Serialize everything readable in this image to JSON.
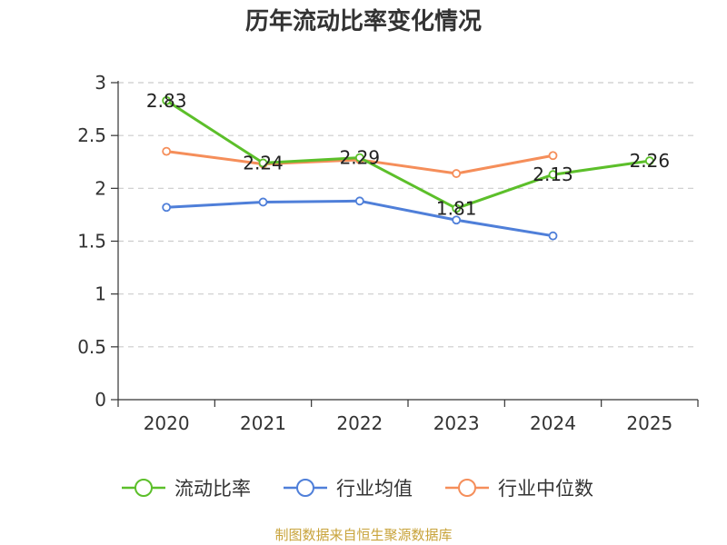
{
  "page": {
    "title": "历年流动比率变化情况",
    "source": "制图数据来自恒生聚源数据库"
  },
  "chart_data": {
    "type": "line",
    "title": "历年流动比率变化情况",
    "xlabel": "",
    "ylabel": "",
    "categories": [
      "2020",
      "2021",
      "2022",
      "2023",
      "2024",
      "2025"
    ],
    "ylim": [
      0,
      3
    ],
    "yticks": [
      0,
      0.5,
      1,
      1.5,
      2,
      2.5,
      3
    ],
    "ytick_labels": [
      "0",
      "0.5",
      "1",
      "1.5",
      "2",
      "2.5",
      "3"
    ],
    "grid": true,
    "legend_position": "bottom",
    "series": [
      {
        "name": "流动比率",
        "color": "#5cbf2a",
        "values": [
          2.83,
          2.24,
          2.29,
          1.81,
          2.13,
          2.26
        ],
        "labels": [
          "2.83",
          "2.24",
          "2.29",
          "1.81",
          "2.13",
          "2.26"
        ]
      },
      {
        "name": "行业均值",
        "color": "#4f7fd9",
        "values": [
          1.82,
          1.87,
          1.88,
          1.7,
          1.55,
          null
        ]
      },
      {
        "name": "行业中位数",
        "color": "#f58e5a",
        "values": [
          2.35,
          2.23,
          2.27,
          2.14,
          2.31,
          null
        ]
      }
    ]
  }
}
